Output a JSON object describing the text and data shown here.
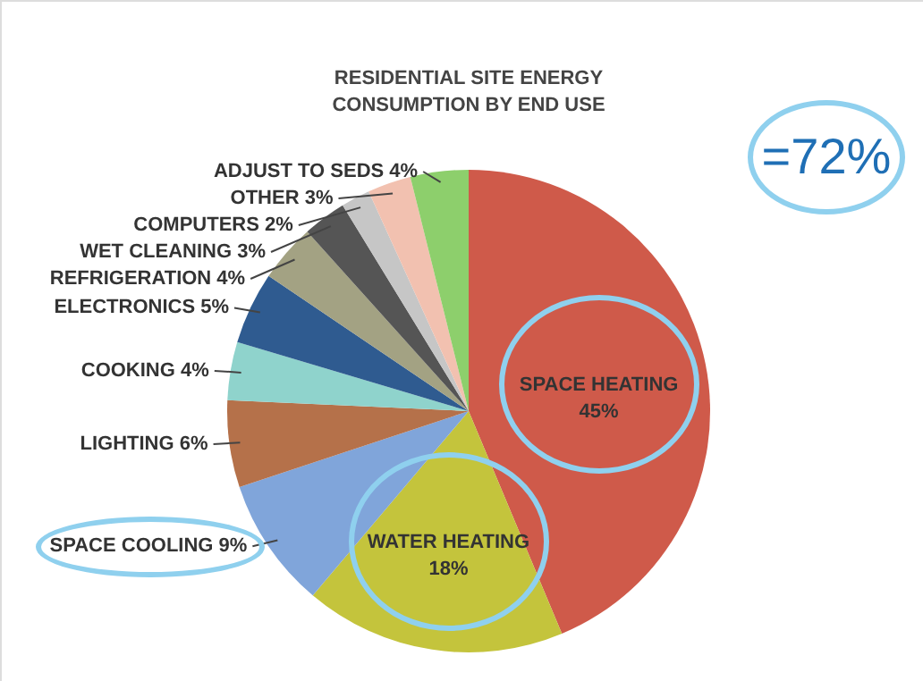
{
  "chart_data": {
    "type": "pie",
    "title": "RESIDENTIAL SITE ENERGY\nCONSUMPTION BY END USE",
    "categories": [
      "SPACE HEATING",
      "WATER HEATING",
      "SPACE COOLING",
      "LIGHTING",
      "COOKING",
      "ELECTRONICS",
      "REFRIGERATION",
      "WET CLEANING",
      "COMPUTERS",
      "OTHER",
      "ADJUST TO SEDS"
    ],
    "values": [
      45,
      18,
      9,
      6,
      4,
      5,
      4,
      3,
      2,
      3,
      4
    ],
    "value_labels": [
      "45%",
      "18%",
      "9%",
      "6%",
      "4%",
      "5%",
      "4%",
      "3%",
      "2%",
      "3%",
      "4%"
    ],
    "colors": [
      "#cf5a4a",
      "#c4c43c",
      "#80a5da",
      "#b5714a",
      "#8fd3cc",
      "#2f5b90",
      "#a3a283",
      "#555555",
      "#c6c6c6",
      "#f2c1b0",
      "#8dcf6c"
    ],
    "annotations": [
      "=72%"
    ]
  }
}
